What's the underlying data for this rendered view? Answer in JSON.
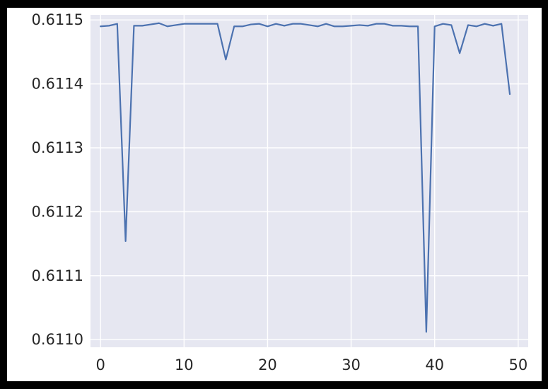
{
  "chart_data": {
    "type": "line",
    "title": "",
    "xlabel": "",
    "ylabel": "",
    "xlim": [
      -1.2,
      51.2
    ],
    "ylim": [
      0.610988,
      0.611508
    ],
    "x_ticks": [
      0,
      10,
      20,
      30,
      40,
      50
    ],
    "y_ticks": [
      0.611,
      0.6111,
      0.6112,
      0.6113,
      0.6114,
      0.6115
    ],
    "x_tick_labels": [
      "0",
      "10",
      "20",
      "30",
      "40",
      "50"
    ],
    "y_tick_labels": [
      "0.6110",
      "0.6111",
      "0.6112",
      "0.6113",
      "0.6114",
      "0.6115"
    ],
    "grid": true,
    "style": {
      "plot_background": "#e6e7f1",
      "grid_color": "#ffffff",
      "line_color": "#4c72b0",
      "figure_background": "#ffffff",
      "frame_background": "#000000"
    },
    "series": [
      {
        "x": [
          0,
          1,
          2,
          3,
          4,
          5,
          6,
          7,
          8,
          9,
          10,
          11,
          12,
          13,
          14,
          15,
          16,
          17,
          18,
          19,
          20,
          21,
          22,
          23,
          24,
          25,
          26,
          27,
          28,
          29,
          30,
          31,
          32,
          33,
          34,
          35,
          36,
          37,
          38,
          39,
          40,
          41,
          42,
          43,
          44,
          45,
          46,
          47,
          48,
          49
        ],
        "values": [
          0.61149,
          0.611491,
          0.611494,
          0.611154,
          0.611491,
          0.611491,
          0.611493,
          0.611495,
          0.61149,
          0.611492,
          0.611494,
          0.611494,
          0.611494,
          0.611494,
          0.611494,
          0.611438,
          0.61149,
          0.61149,
          0.611493,
          0.611494,
          0.61149,
          0.611494,
          0.611491,
          0.611494,
          0.611494,
          0.611492,
          0.61149,
          0.611494,
          0.61149,
          0.61149,
          0.611491,
          0.611492,
          0.611491,
          0.611494,
          0.611494,
          0.611491,
          0.611491,
          0.61149,
          0.61149,
          0.611012,
          0.61149,
          0.611494,
          0.611492,
          0.611448,
          0.611492,
          0.61149,
          0.611494,
          0.611491,
          0.611494,
          0.611384
        ]
      }
    ]
  }
}
